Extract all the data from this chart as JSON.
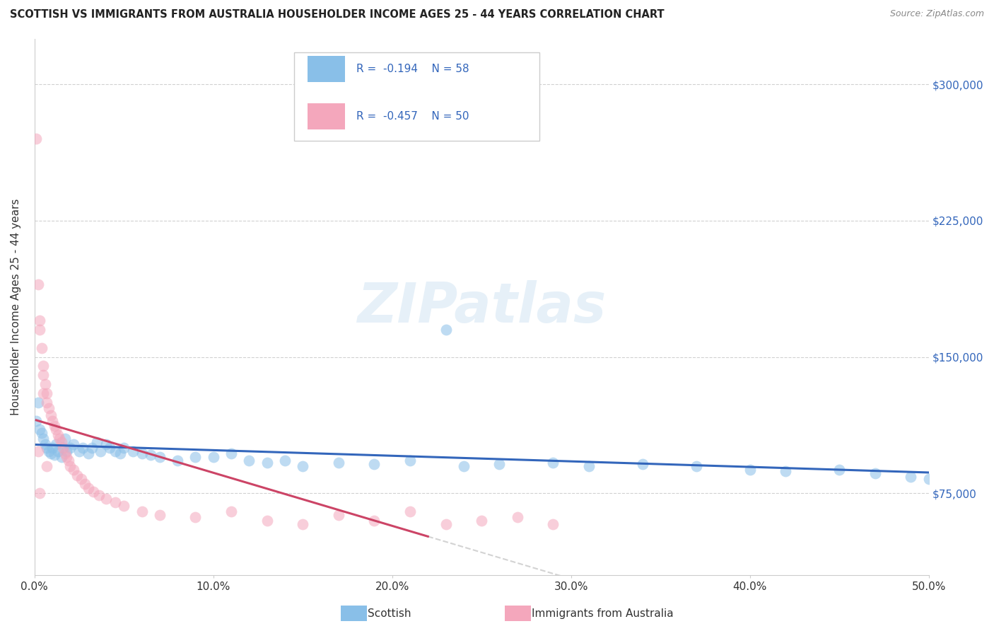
{
  "title": "SCOTTISH VS IMMIGRANTS FROM AUSTRALIA HOUSEHOLDER INCOME AGES 25 - 44 YEARS CORRELATION CHART",
  "source": "Source: ZipAtlas.com",
  "ylabel": "Householder Income Ages 25 - 44 years",
  "xlim": [
    0.0,
    0.5
  ],
  "ylim": [
    30000,
    325000
  ],
  "yticks": [
    75000,
    150000,
    225000,
    300000
  ],
  "ytick_labels": [
    "$75,000",
    "$150,000",
    "$225,000",
    "$300,000"
  ],
  "xticks": [
    0.0,
    0.1,
    0.2,
    0.3,
    0.4,
    0.5
  ],
  "xtick_labels": [
    "0.0%",
    "10.0%",
    "20.0%",
    "30.0%",
    "40.0%",
    "50.0%"
  ],
  "watermark": "ZIPatlas",
  "scottish_color": "#89bfe8",
  "australian_color": "#f4a7bc",
  "trend_blue": "#3366bb",
  "trend_pink": "#cc4466",
  "scatter_alpha": 0.55,
  "scatter_size": 130,
  "scottish_x": [
    0.001,
    0.002,
    0.003,
    0.004,
    0.005,
    0.006,
    0.007,
    0.008,
    0.009,
    0.01,
    0.011,
    0.012,
    0.013,
    0.015,
    0.016,
    0.017,
    0.018,
    0.02,
    0.022,
    0.025,
    0.027,
    0.03,
    0.032,
    0.035,
    0.037,
    0.04,
    0.042,
    0.045,
    0.048,
    0.05,
    0.055,
    0.06,
    0.065,
    0.07,
    0.08,
    0.09,
    0.1,
    0.11,
    0.12,
    0.13,
    0.14,
    0.15,
    0.17,
    0.19,
    0.21,
    0.24,
    0.26,
    0.29,
    0.31,
    0.34,
    0.37,
    0.4,
    0.42,
    0.45,
    0.47,
    0.49,
    0.5,
    0.23
  ],
  "scottish_y": [
    115000,
    125000,
    110000,
    108000,
    105000,
    102000,
    100000,
    98000,
    97000,
    100000,
    96000,
    102000,
    98000,
    95000,
    100000,
    105000,
    98000,
    100000,
    102000,
    98000,
    100000,
    97000,
    100000,
    103000,
    98000,
    102000,
    100000,
    98000,
    97000,
    100000,
    98000,
    97000,
    96000,
    95000,
    93000,
    95000,
    95000,
    97000,
    93000,
    92000,
    93000,
    90000,
    92000,
    91000,
    93000,
    90000,
    91000,
    92000,
    90000,
    91000,
    90000,
    88000,
    87000,
    88000,
    86000,
    84000,
    83000,
    165000
  ],
  "australian_x": [
    0.001,
    0.002,
    0.003,
    0.003,
    0.004,
    0.005,
    0.005,
    0.006,
    0.007,
    0.007,
    0.008,
    0.009,
    0.01,
    0.011,
    0.012,
    0.013,
    0.014,
    0.015,
    0.016,
    0.017,
    0.018,
    0.019,
    0.02,
    0.022,
    0.024,
    0.026,
    0.028,
    0.03,
    0.033,
    0.036,
    0.04,
    0.045,
    0.05,
    0.06,
    0.07,
    0.09,
    0.11,
    0.13,
    0.15,
    0.17,
    0.19,
    0.21,
    0.23,
    0.25,
    0.27,
    0.29,
    0.005,
    0.002,
    0.003,
    0.007
  ],
  "australian_y": [
    270000,
    190000,
    170000,
    165000,
    155000,
    145000,
    140000,
    135000,
    130000,
    125000,
    122000,
    118000,
    115000,
    112000,
    110000,
    107000,
    105000,
    103000,
    100000,
    97000,
    95000,
    93000,
    90000,
    88000,
    85000,
    83000,
    80000,
    78000,
    76000,
    74000,
    72000,
    70000,
    68000,
    65000,
    63000,
    62000,
    65000,
    60000,
    58000,
    63000,
    60000,
    65000,
    58000,
    60000,
    62000,
    58000,
    130000,
    98000,
    75000,
    90000
  ],
  "trend_pink_x_start": 0.001,
  "trend_pink_x_end": 0.22,
  "trend_blue_x_start": 0.001,
  "trend_blue_x_end": 0.5
}
